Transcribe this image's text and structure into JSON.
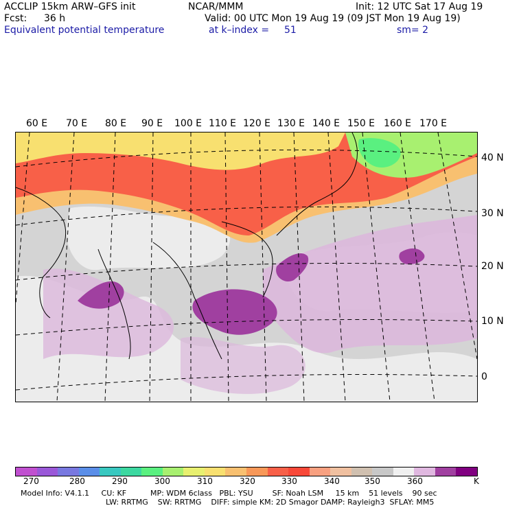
{
  "header": {
    "model": "ACCLIP 15km ARW–GFS init",
    "center": "NCAR/MMM",
    "init": "Init: 12 UTC Sat 17 Aug 19",
    "fcst_label": "Fcst:",
    "fcst_value": "36 h",
    "valid": "Valid: 00 UTC Mon 19 Aug 19 (09 JST Mon 19 Aug 19)",
    "field": "Equivalent potential temperature",
    "level": "at k–index =",
    "level_value": "51",
    "smoothing": "sm= 2"
  },
  "map": {
    "lon_labels": [
      "60 E",
      "70 E",
      "80 E",
      "90 E",
      "100 E",
      "110 E",
      "120 E",
      "130 E",
      "140 E",
      "150 E",
      "160 E",
      "170 E"
    ],
    "lat_labels": [
      "40 N",
      "30 N",
      "20 N",
      "10 N",
      "0"
    ]
  },
  "colorbar": {
    "colors": [
      "#c050d0",
      "#9a58d8",
      "#7878e0",
      "#5a8ee8",
      "#38c8c0",
      "#3cd8a0",
      "#5af080",
      "#a8f070",
      "#e8f070",
      "#f8e070",
      "#f8c070",
      "#f89858",
      "#f86048",
      "#f84838",
      "#f8a080",
      "#f0c0a0",
      "#d0c0b0",
      "#c8c8c8",
      "#f0f0f0",
      "#e0b8e0",
      "#a040a0",
      "#800080"
    ],
    "tick_labels": [
      "270",
      "280",
      "290",
      "300",
      "310",
      "320",
      "330",
      "340",
      "350",
      "360"
    ],
    "unit": "K"
  },
  "footer": {
    "line1": "Model Info: V4.1.1     CU: KF          MP: WDM 6class   PBL: YSU        SF: Noah LSM     15 km    51 levels    90 sec",
    "line2": "LW: RRTMG    SW: RRTMG    DIFF: simple KM: 2D Smagor DAMP: Rayleigh3  SFLAY: MM5"
  }
}
